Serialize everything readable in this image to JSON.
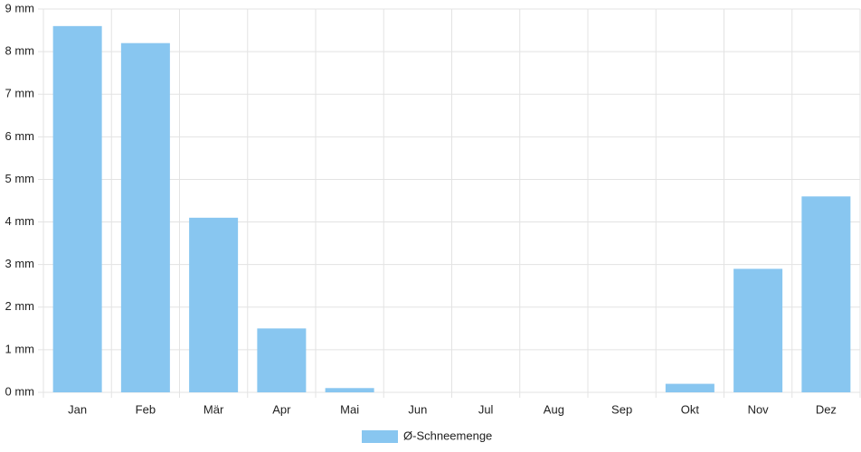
{
  "chart_data": {
    "type": "bar",
    "categories": [
      "Jan",
      "Feb",
      "Mär",
      "Apr",
      "Mai",
      "Jun",
      "Jul",
      "Aug",
      "Sep",
      "Okt",
      "Nov",
      "Dez"
    ],
    "series": [
      {
        "name": "Ø-Schneemenge",
        "color": "#88c6f0",
        "values": [
          8.6,
          8.2,
          4.1,
          1.5,
          0.1,
          0,
          0,
          0,
          0,
          0.2,
          2.9,
          4.6
        ]
      }
    ],
    "ylim": [
      0,
      9
    ],
    "yticks": [
      {
        "value": 0,
        "label": "0 mm"
      },
      {
        "value": 1,
        "label": "1 mm"
      },
      {
        "value": 2,
        "label": "2 mm"
      },
      {
        "value": 3,
        "label": "3 mm"
      },
      {
        "value": 4,
        "label": "4 mm"
      },
      {
        "value": 5,
        "label": "5 mm"
      },
      {
        "value": 6,
        "label": "6 mm"
      },
      {
        "value": 7,
        "label": "7 mm"
      },
      {
        "value": 8,
        "label": "8 mm"
      },
      {
        "value": 9,
        "label": "9 mm"
      }
    ],
    "grid": true,
    "legend": "bottom"
  }
}
